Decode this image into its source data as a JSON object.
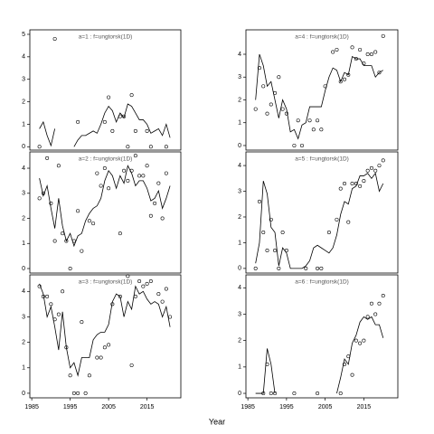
{
  "xlabel": "Year",
  "chart_data": [
    {
      "type": "scatter",
      "title": "a=1 : f=ungtorsk(1D)",
      "x": [
        1987,
        1988,
        1989,
        1990,
        1991,
        1992,
        1993,
        1994,
        1995,
        1996,
        1997,
        1998,
        1999,
        2000,
        2001,
        2002,
        2003,
        2004,
        2005,
        2006,
        2007,
        2008,
        2009,
        2010,
        2011,
        2012,
        2013,
        2014,
        2015,
        2016,
        2017,
        2018,
        2019,
        2020,
        2021
      ],
      "values": [
        0,
        null,
        null,
        null,
        4.8,
        null,
        null,
        null,
        null,
        null,
        1.1,
        null,
        null,
        null,
        null,
        null,
        null,
        1.1,
        2.2,
        0.7,
        null,
        1.35,
        1.35,
        0,
        2.3,
        0.7,
        null,
        null,
        0.7,
        0,
        null,
        null,
        null,
        0,
        null
      ],
      "line_values": [
        0.8,
        1.1,
        0.5,
        0.05,
        0.8,
        null,
        null,
        null,
        null,
        0.0,
        0.3,
        0.5,
        0.5,
        0.6,
        0.7,
        0.6,
        1.0,
        1.5,
        1.8,
        1.6,
        1.1,
        1.5,
        1.3,
        1.9,
        1.8,
        1.5,
        1.2,
        1.2,
        1.0,
        0.6,
        0.7,
        0.8,
        0.5,
        1.0,
        0.4
      ],
      "xlim": [
        1984.5,
        2023.8
      ],
      "ylim": [
        -0.15,
        5.2
      ],
      "yticks": [
        0,
        1,
        2,
        3,
        4,
        5
      ]
    },
    {
      "type": "scatter",
      "title": "a=2 : f=ungtorsk(1D)",
      "x": [
        1987,
        1988,
        1989,
        1990,
        1991,
        1992,
        1993,
        1994,
        1995,
        1996,
        1997,
        1998,
        1999,
        2000,
        2001,
        2002,
        2003,
        2004,
        2005,
        2006,
        2007,
        2008,
        2009,
        2010,
        2011,
        2012,
        2013,
        2014,
        2015,
        2016,
        2017,
        2018,
        2019,
        2020,
        2021
      ],
      "values": [
        2.8,
        3.0,
        4.4,
        2.6,
        1.1,
        4.1,
        1.4,
        1.1,
        0,
        1.1,
        2.3,
        0.7,
        null,
        1.9,
        1.8,
        3.8,
        3.3,
        4.0,
        3.2,
        null,
        null,
        1.4,
        3.9,
        3.5,
        3.9,
        4.5,
        3.7,
        3.7,
        4.1,
        2.1,
        2.6,
        3.4,
        2.0,
        3.8,
        null
      ],
      "line_values": [
        3.6,
        2.9,
        3.3,
        2.4,
        1.6,
        2.8,
        1.7,
        1.1,
        1.4,
        0.9,
        1.3,
        1.4,
        1.9,
        2.2,
        2.4,
        2.5,
        2.8,
        3.5,
        3.9,
        3.7,
        3.2,
        3.7,
        3.4,
        4.1,
        3.8,
        3.3,
        3.5,
        3.5,
        3.2,
        2.7,
        2.8,
        3.1,
        2.4,
        2.8,
        3.3
      ],
      "xlim": [
        1984.5,
        2023.8
      ],
      "ylim": [
        -0.18,
        4.65
      ],
      "yticks": [
        0,
        1,
        2,
        3,
        4
      ]
    },
    {
      "type": "scatter",
      "title": "a=3 : f=ungtorsk(1D)",
      "x": [
        1987,
        1988,
        1989,
        1990,
        1991,
        1992,
        1993,
        1994,
        1995,
        1996,
        1997,
        1998,
        1999,
        2000,
        2001,
        2002,
        2003,
        2004,
        2005,
        2006,
        2007,
        2008,
        2009,
        2010,
        2011,
        2012,
        2013,
        2014,
        2015,
        2016,
        2017,
        2018,
        2019,
        2020,
        2021
      ],
      "values": [
        4.2,
        3.8,
        3.8,
        3.5,
        2.9,
        3.1,
        4.0,
        1.8,
        0.7,
        0,
        0,
        2.8,
        0,
        0.7,
        null,
        1.4,
        1.4,
        1.8,
        1.9,
        3.5,
        null,
        3.8,
        null,
        4.6,
        1.1,
        3.8,
        4.4,
        4.2,
        4.3,
        4.4,
        null,
        3.9,
        3.6,
        4.1,
        3.0
      ],
      "line_values": [
        4.3,
        3.9,
        3.0,
        3.4,
        2.6,
        1.7,
        3.2,
        1.8,
        1.0,
        1.2,
        0.7,
        1.4,
        1.4,
        1.4,
        2.1,
        2.3,
        2.4,
        2.4,
        2.7,
        3.6,
        3.9,
        3.8,
        3.0,
        3.6,
        3.3,
        4.2,
        3.9,
        4.0,
        3.7,
        3.5,
        3.6,
        3.5,
        3.0,
        3.4,
        2.6
      ],
      "xlim": [
        1984.5,
        2023.8
      ],
      "ylim": [
        -0.18,
        4.65
      ],
      "yticks": [
        0,
        1,
        2,
        3,
        4
      ],
      "xticks": [
        1985,
        1995,
        2005,
        2015
      ]
    },
    {
      "type": "scatter",
      "title": "a=4 : f=ungtorsk(1D)",
      "x": [
        1987,
        1988,
        1989,
        1990,
        1991,
        1992,
        1993,
        1994,
        1995,
        1996,
        1997,
        1998,
        1999,
        2000,
        2001,
        2002,
        2003,
        2004,
        2005,
        2006,
        2007,
        2008,
        2009,
        2010,
        2011,
        2012,
        2013,
        2014,
        2015,
        2016,
        2017,
        2018,
        2019,
        2020,
        2021
      ],
      "values": [
        1.6,
        3.4,
        2.6,
        1.4,
        1.8,
        2.3,
        3.0,
        1.6,
        1.4,
        null,
        0,
        1.1,
        0,
        null,
        1.1,
        0.7,
        1.1,
        0.7,
        2.6,
        null,
        4.1,
        4.2,
        2.8,
        2.9,
        3.1,
        4.3,
        3.8,
        4.2,
        3.6,
        4.0,
        4.0,
        4.1,
        3.2,
        4.8,
        null
      ],
      "line_values": [
        2.0,
        4.0,
        3.5,
        2.6,
        2.8,
        2.0,
        1.2,
        2.0,
        1.6,
        0.6,
        0.7,
        0.3,
        0.9,
        1.0,
        1.7,
        1.7,
        1.7,
        1.7,
        2.4,
        3.0,
        3.4,
        3.3,
        2.8,
        3.2,
        3.1,
        3.9,
        3.8,
        3.8,
        3.5,
        3.5,
        3.5,
        3.0,
        3.2,
        3.3,
        null
      ],
      "xlim": [
        1984.5,
        2023.8
      ],
      "ylim": [
        -0.2,
        5.07
      ],
      "yticks": [
        0,
        1,
        2,
        3,
        4
      ]
    },
    {
      "type": "scatter",
      "title": "a=5 : f=ungtorsk(1D)",
      "x": [
        1987,
        1988,
        1989,
        1990,
        1991,
        1992,
        1993,
        1994,
        1995,
        1996,
        1997,
        1998,
        1999,
        2000,
        2001,
        2002,
        2003,
        2004,
        2005,
        2006,
        2007,
        2008,
        2009,
        2010,
        2011,
        2012,
        2013,
        2014,
        2015,
        2016,
        2017,
        2018,
        2019,
        2020,
        2021
      ],
      "values": [
        0,
        2.6,
        1.4,
        0.7,
        1.9,
        0.7,
        0,
        1.4,
        0.7,
        null,
        null,
        null,
        null,
        0,
        null,
        null,
        0,
        0,
        null,
        1.4,
        null,
        1.9,
        3.1,
        3.3,
        1.8,
        3.3,
        3.3,
        3.2,
        3.4,
        3.8,
        3.9,
        3.8,
        4.0,
        4.2,
        null
      ],
      "line_values": [
        0.2,
        1.0,
        3.4,
        2.9,
        1.6,
        1.4,
        0.1,
        0.8,
        0.6,
        0.0,
        0.0,
        0.0,
        0.0,
        0.1,
        0.3,
        0.8,
        0.9,
        0.8,
        0.7,
        0.6,
        0.8,
        1.3,
        2.1,
        2.6,
        2.5,
        3.1,
        3.2,
        3.6,
        3.6,
        3.7,
        3.5,
        3.7,
        3.0,
        3.3,
        null
      ],
      "xlim": [
        1984.5,
        2023.8
      ],
      "ylim": [
        -0.18,
        4.53
      ],
      "yticks": [
        0,
        1,
        2,
        3,
        4
      ]
    },
    {
      "type": "scatter",
      "title": "a=6 : f=ungtorsk(1D)",
      "x": [
        1987,
        1988,
        1989,
        1990,
        1991,
        1992,
        1993,
        1994,
        1995,
        1996,
        1997,
        1998,
        1999,
        2000,
        2001,
        2002,
        2003,
        2004,
        2005,
        2006,
        2007,
        2008,
        2009,
        2010,
        2011,
        2012,
        2013,
        2014,
        2015,
        2016,
        2017,
        2018,
        2019,
        2020,
        2021
      ],
      "values": [
        null,
        null,
        0,
        1.1,
        0,
        0,
        null,
        null,
        null,
        null,
        0,
        null,
        null,
        null,
        null,
        null,
        0,
        null,
        null,
        null,
        null,
        null,
        0,
        1.1,
        1.4,
        0.7,
        2.0,
        1.9,
        2.0,
        2.9,
        3.4,
        3.0,
        3.4,
        3.7,
        null
      ],
      "line_values": [
        0,
        0,
        0,
        1.7,
        1.1,
        0,
        null,
        null,
        null,
        null,
        null,
        null,
        null,
        null,
        null,
        null,
        null,
        null,
        null,
        null,
        null,
        0.0,
        0.6,
        1.3,
        1.1,
        1.9,
        2.2,
        2.7,
        2.9,
        2.8,
        2.9,
        2.6,
        2.6,
        2.1,
        null
      ],
      "xlim": [
        1984.5,
        2023.8
      ],
      "ylim": [
        -0.17,
        4.49
      ],
      "yticks": [
        0,
        1,
        2,
        3,
        4
      ],
      "xticks": [
        1985,
        1995,
        2005,
        2015
      ]
    }
  ]
}
